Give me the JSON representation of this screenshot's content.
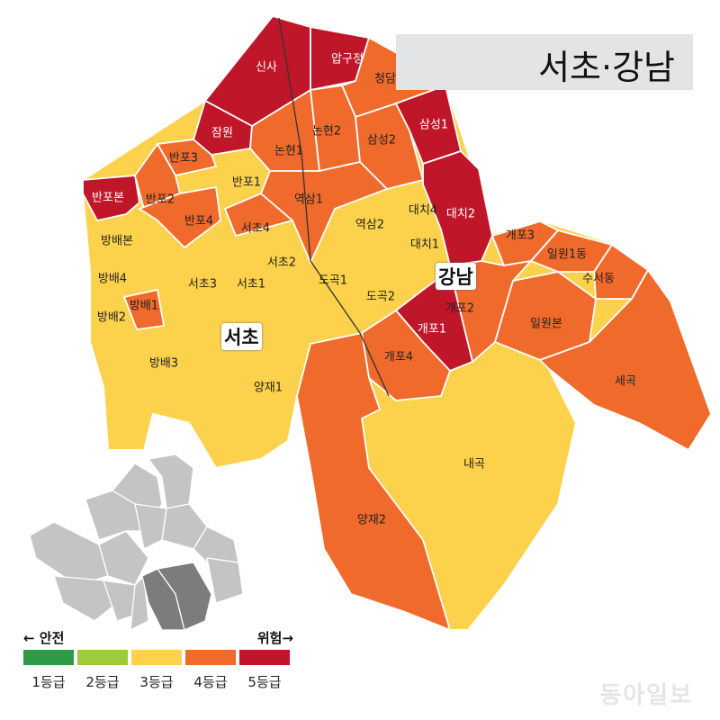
{
  "title": "서초·강남",
  "district_labels": {
    "gangnam": "강남",
    "seocho": "서초"
  },
  "colors": {
    "1": "#2f9a47",
    "2": "#9ccb3b",
    "3": "#fcd14b",
    "4": "#ef6a2b",
    "5": "#bf1629",
    "border": "#ffffff",
    "inset_gray": "#c4c4c4",
    "inset_highlight": "#7c7c7c"
  },
  "legend": {
    "safe_label": "← 안전",
    "danger_label": "위험→",
    "grades": [
      {
        "label": "1등급",
        "grade": 1
      },
      {
        "label": "2등급",
        "grade": 2
      },
      {
        "label": "3등급",
        "grade": 3
      },
      {
        "label": "4등급",
        "grade": 4
      },
      {
        "label": "5등급",
        "grade": 5
      }
    ]
  },
  "districts": [
    {
      "name": "신사",
      "grade": 5
    },
    {
      "name": "압구정",
      "grade": 5
    },
    {
      "name": "청담",
      "grade": 4
    },
    {
      "name": "잠원",
      "grade": 5
    },
    {
      "name": "논현1",
      "grade": 4
    },
    {
      "name": "논현2",
      "grade": 4
    },
    {
      "name": "삼성2",
      "grade": 4
    },
    {
      "name": "삼성1",
      "grade": 5
    },
    {
      "name": "반포3",
      "grade": 4
    },
    {
      "name": "반포본",
      "grade": 5
    },
    {
      "name": "반포2",
      "grade": 4
    },
    {
      "name": "반포1",
      "grade": 3
    },
    {
      "name": "반포4",
      "grade": 4
    },
    {
      "name": "서초4",
      "grade": 4
    },
    {
      "name": "역삼1",
      "grade": 4
    },
    {
      "name": "역삼2",
      "grade": 3
    },
    {
      "name": "대치4",
      "grade": 3
    },
    {
      "name": "대치1",
      "grade": 3
    },
    {
      "name": "대치2",
      "grade": 5
    },
    {
      "name": "방배본",
      "grade": 3
    },
    {
      "name": "방배4",
      "grade": 3
    },
    {
      "name": "방배1",
      "grade": 4
    },
    {
      "name": "방배2",
      "grade": 3
    },
    {
      "name": "방배3",
      "grade": 3
    },
    {
      "name": "서초3",
      "grade": 3
    },
    {
      "name": "서초1",
      "grade": 3
    },
    {
      "name": "서초2",
      "grade": 3
    },
    {
      "name": "도곡1",
      "grade": 3
    },
    {
      "name": "도곡2",
      "grade": 3
    },
    {
      "name": "양재1",
      "grade": 3
    },
    {
      "name": "개포3",
      "grade": 4
    },
    {
      "name": "일원1동",
      "grade": 4
    },
    {
      "name": "수서동",
      "grade": 4
    },
    {
      "name": "개포2",
      "grade": 4
    },
    {
      "name": "일원본",
      "grade": 4
    },
    {
      "name": "개포1",
      "grade": 5
    },
    {
      "name": "개포4",
      "grade": 4
    },
    {
      "name": "세곡",
      "grade": 4
    },
    {
      "name": "내곡",
      "grade": 3
    },
    {
      "name": "양재2",
      "grade": 4
    }
  ],
  "watermark": "동아일보"
}
